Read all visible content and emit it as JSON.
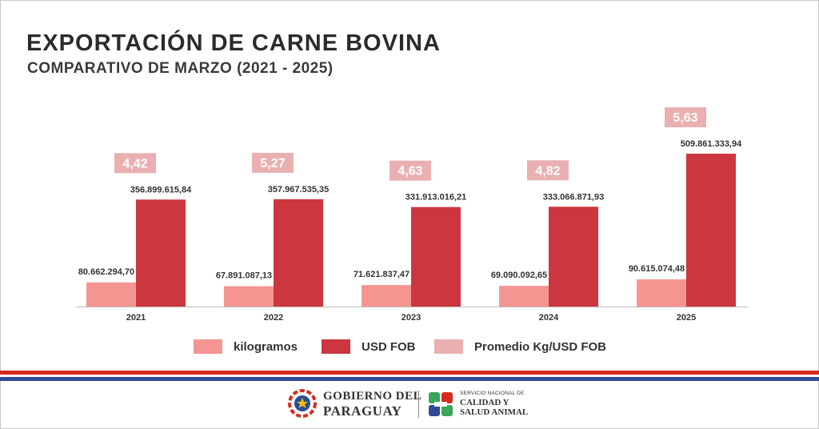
{
  "header": {
    "title": "EXPORTACIÓN DE CARNE BOVINA",
    "subtitle": "COMPARATIVO DE MARZO (2021 - 2025)"
  },
  "colors": {
    "kilogramos": "#f59592",
    "usd_fob": "#cc363e",
    "promedio": "#eab0b1",
    "stripe_red": "#d52b1e",
    "stripe_blue": "#2e4b9a"
  },
  "chart_data": {
    "type": "bar",
    "categories": [
      "2021",
      "2022",
      "2023",
      "2024",
      "2025"
    ],
    "series": [
      {
        "name": "kilogramos",
        "values": [
          80662294.7,
          67891087.13,
          71621837.47,
          69090092.65,
          90615074.48
        ],
        "labels": [
          "80.662.294,70",
          "67.891.087,13",
          "71.621.837,47",
          "69.090.092,65",
          "90.615.074,48"
        ]
      },
      {
        "name": "USD FOB",
        "values": [
          356899615.84,
          357967535.35,
          331913016.21,
          333066871.93,
          509861333.94
        ],
        "labels": [
          "356.899.615,84",
          "357.967.535,35",
          "331.913.016,21",
          "333.066.871,93",
          "509.861.333,94"
        ]
      }
    ],
    "promedio": {
      "name": "Promedio Kg/USD FOB",
      "values": [
        4.42,
        5.27,
        4.63,
        4.82,
        5.63
      ],
      "labels": [
        "4,42",
        "5,27",
        "4,63",
        "4,82",
        "5,63"
      ]
    },
    "ylim": [
      0,
      510000000
    ],
    "grid": false,
    "legend": "bottom"
  },
  "legend": {
    "items": [
      {
        "label": "kilogramos"
      },
      {
        "label": "USD FOB"
      },
      {
        "label": "Promedio Kg/USD FOB"
      }
    ]
  },
  "footer": {
    "gobierno_line1": "GOBIERNO DEL",
    "gobierno_line2": "PARAGUAY",
    "senacsa_small": "SERVICIO NACIONAL DE",
    "senacsa_line1": "CALIDAD Y",
    "senacsa_line2": "SALUD ANIMAL"
  }
}
